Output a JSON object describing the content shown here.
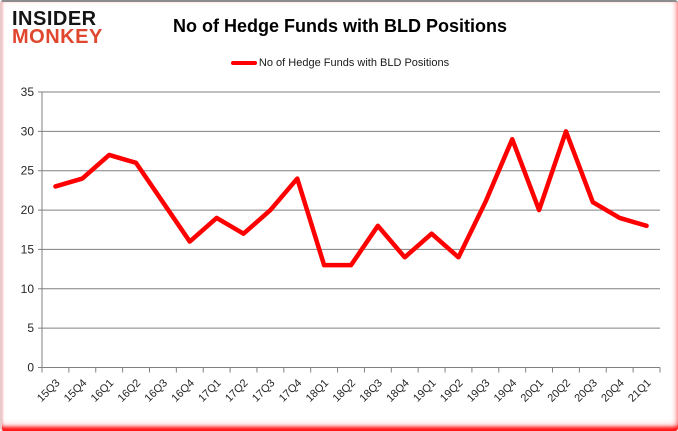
{
  "logo": {
    "line1": "INSIDER",
    "line2": "MONKEY"
  },
  "title": "No of Hedge Funds with BLD Positions",
  "legend": {
    "label": "No of Hedge Funds with BLD Positions"
  },
  "colors": {
    "line": "#ff0000",
    "logo_red": "#df472e",
    "grid": "#808080",
    "axis": "#808080",
    "tick_label": "#262626",
    "frame_glow": "#ff0000"
  },
  "chart_data": {
    "type": "line",
    "title": "No of Hedge Funds with BLD Positions",
    "categories": [
      "15Q3",
      "15Q4",
      "16Q1",
      "16Q2",
      "16Q3",
      "16Q4",
      "17Q1",
      "17Q2",
      "17Q3",
      "17Q4",
      "18Q1",
      "18Q2",
      "18Q3",
      "18Q4",
      "19Q1",
      "19Q2",
      "19Q3",
      "19Q4",
      "20Q1",
      "20Q2",
      "20Q3",
      "20Q4",
      "21Q1"
    ],
    "series": [
      {
        "name": "No of Hedge Funds with BLD Positions",
        "color": "#ff0000",
        "values": [
          23,
          24,
          27,
          26,
          21,
          16,
          19,
          17,
          20,
          24,
          13,
          13,
          18,
          14,
          17,
          14,
          21,
          29,
          20,
          30,
          21,
          19,
          18
        ]
      }
    ],
    "xlabel": "",
    "ylabel": "",
    "ylim": [
      0,
      35
    ],
    "ytick_interval": 5,
    "grid": "horizontal",
    "legend_position": "top"
  }
}
